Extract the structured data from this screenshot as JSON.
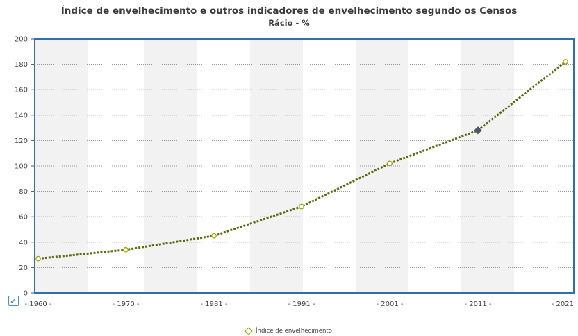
{
  "chart_data": {
    "type": "line",
    "title": "Índice de envelhecimento e outros indicadores de envelhecimento segundo os Censos",
    "subtitle": "Rácio - %",
    "categories": [
      "1960",
      "1970",
      "1981",
      "1991",
      "2001",
      "2011",
      "2021"
    ],
    "x_tick_labels": [
      "- 1960 -",
      "- 1970 -",
      "- 1981 -",
      "- 1991 -",
      "- 2001 -",
      "- 2011 -",
      "- 2021"
    ],
    "series": [
      {
        "name": "Índice de envelhecimento",
        "values": [
          27,
          34,
          45,
          68,
          102,
          128,
          182
        ]
      }
    ],
    "ylim": [
      0,
      200
    ],
    "yticks": [
      0,
      20,
      40,
      60,
      80,
      100,
      120,
      140,
      160,
      180,
      200
    ],
    "grid": true,
    "legend_position": "bottom",
    "highlighted_point": "2011",
    "colors": {
      "line": "#5a6b12",
      "marker": "#a3a000",
      "highlight": "#4a5a6a",
      "plot_border": "#2f6fb0",
      "band": "#f2f2f2"
    }
  },
  "legend": {
    "label": "Índice de envelhecimento"
  },
  "checkbox": {
    "icon": "check-icon",
    "glyph": "✓"
  }
}
